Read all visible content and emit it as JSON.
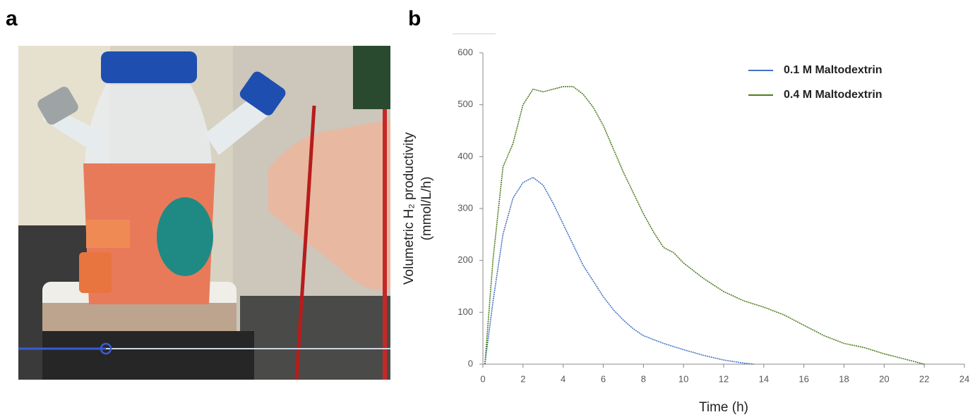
{
  "panels": [
    "a",
    "b"
  ],
  "chart_data": {
    "type": "line",
    "xlabel": "Time (h)",
    "ylabel": [
      "Volumetric H₂ productivity",
      "(mmol/L/h)"
    ],
    "xlim": [
      0,
      24
    ],
    "xticks": [
      0,
      2,
      4,
      6,
      8,
      10,
      12,
      14,
      16,
      18,
      20,
      22,
      24
    ],
    "ylim": [
      0,
      600
    ],
    "yticks": [
      0,
      100,
      200,
      300,
      400,
      500,
      600
    ],
    "legend": "upper right",
    "series": [
      {
        "name": "0.1 M Maltodextrin",
        "color": "#4472c4",
        "x": [
          0.1,
          0.5,
          1,
          1.5,
          2,
          2.5,
          3,
          3.5,
          4,
          4.5,
          5,
          5.5,
          6,
          6.5,
          7,
          7.5,
          8,
          9,
          10,
          11,
          12,
          13,
          13.5
        ],
        "values": [
          0,
          120,
          250,
          320,
          350,
          360,
          345,
          310,
          270,
          230,
          190,
          160,
          130,
          105,
          85,
          68,
          55,
          40,
          28,
          17,
          8,
          2,
          0
        ]
      },
      {
        "name": "0.4 M Maltodextrin",
        "color": "#4e7a1e",
        "x": [
          0.1,
          0.5,
          1,
          1.5,
          2,
          2.5,
          3,
          3.5,
          4,
          4.5,
          5,
          5.5,
          6,
          6.5,
          7,
          7.5,
          8,
          8.5,
          9,
          9.5,
          10,
          11,
          12,
          13,
          14,
          15,
          16,
          17,
          18,
          19,
          20,
          21,
          22
        ],
        "values": [
          0,
          200,
          380,
          425,
          500,
          530,
          525,
          530,
          535,
          535,
          520,
          495,
          460,
          415,
          370,
          330,
          290,
          255,
          225,
          215,
          195,
          165,
          140,
          122,
          110,
          95,
          75,
          55,
          40,
          32,
          20,
          10,
          0
        ]
      }
    ]
  }
}
